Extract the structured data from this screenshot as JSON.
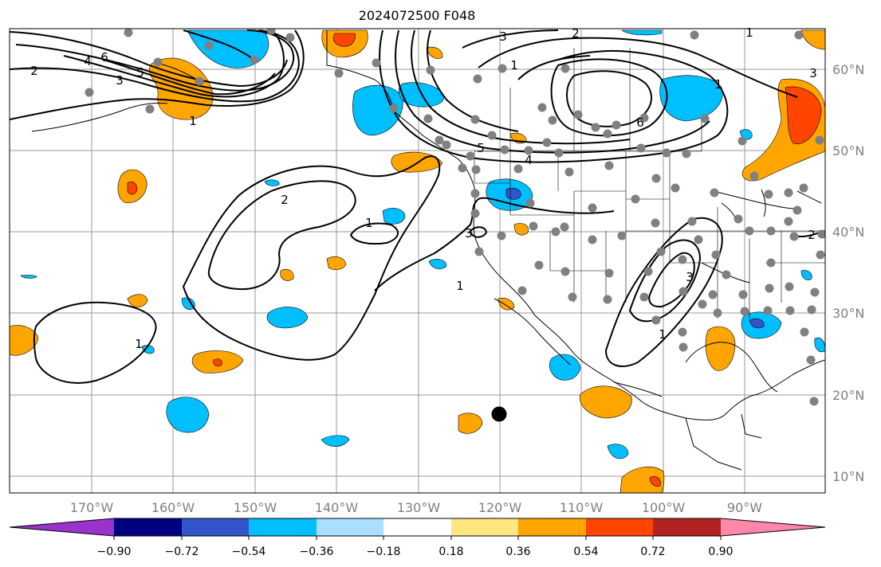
{
  "title": "2024072500 F048",
  "lon_ticks": [
    "170°W",
    "160°W",
    "150°W",
    "140°W",
    "130°W",
    "120°W",
    "110°W",
    "100°W",
    "90°W"
  ],
  "lat_ticks": [
    "60°N",
    "50°N",
    "40°N",
    "30°N",
    "20°N",
    "10°N"
  ],
  "colorbar": {
    "labels": [
      "−0.90",
      "−0.72",
      "−0.54",
      "−0.36",
      "−0.18",
      "0.18",
      "0.36",
      "0.54",
      "0.72",
      "0.90"
    ],
    "colors": [
      "#9933cc",
      "#000080",
      "#3355cc",
      "#00bfff",
      "#aadfff",
      "#ffffff",
      "#ffe680",
      "#ffa500",
      "#ff4500",
      "#b22222",
      "#ff88aa"
    ],
    "extend": "both"
  },
  "contour_labels": [
    "2",
    "6",
    "4",
    "3",
    "5",
    "1",
    "3",
    "2",
    "1",
    "5",
    "6",
    "4",
    "2",
    "1",
    "1",
    "3",
    "1",
    "1",
    "3",
    "1",
    "1",
    "3",
    "2"
  ],
  "marker": {
    "label": "black dot",
    "color": "#000000"
  },
  "station_color": "#808080"
}
